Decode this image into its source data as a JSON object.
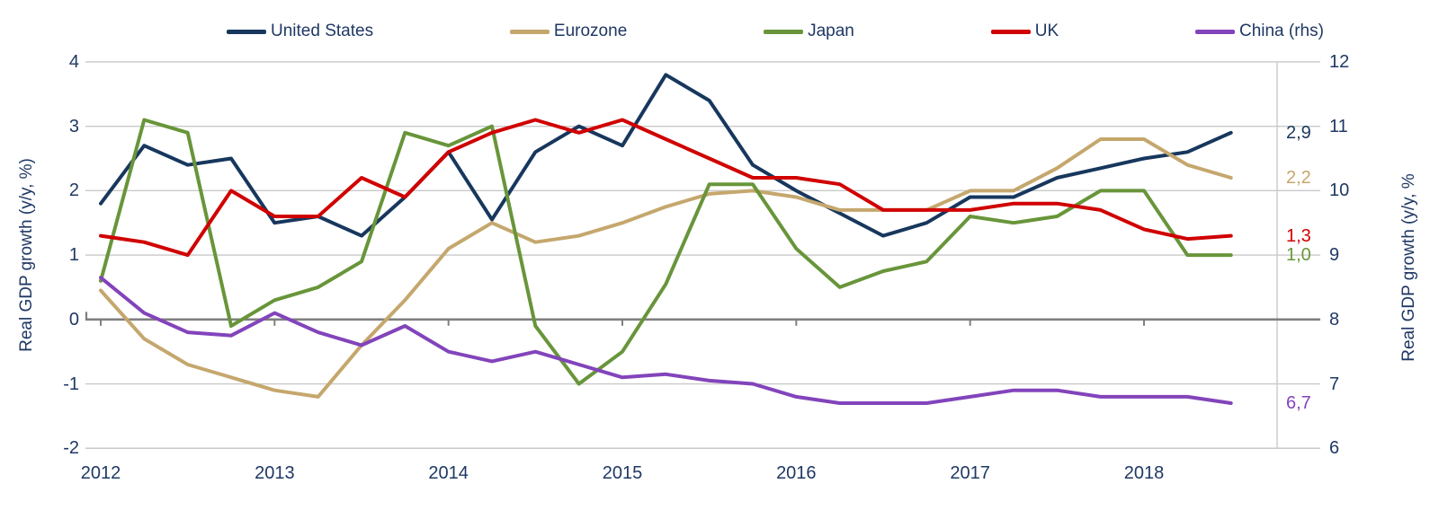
{
  "legend": [
    {
      "label": "United States",
      "color": "#17375d"
    },
    {
      "label": "Eurozone",
      "color": "#c5a76d"
    },
    {
      "label": "Japan",
      "color": "#68953a"
    },
    {
      "label": "UK",
      "color": "#d00000"
    },
    {
      "label": "China (rhs)",
      "color": "#8244bb"
    }
  ],
  "axes": {
    "left": {
      "title": "Real GDP growth (y/y, %)",
      "tick_labels": [
        "4",
        "3",
        "2",
        "1",
        "0",
        "-1",
        "-2"
      ],
      "tick_values": [
        4,
        3,
        2,
        1,
        0,
        -1,
        -2
      ]
    },
    "right": {
      "title": "Real GDP growth (y/y, %",
      "tick_labels": [
        "12",
        "11",
        "10",
        "9",
        "8",
        "7",
        "6"
      ],
      "tick_values": [
        12,
        11,
        10,
        9,
        8,
        7,
        6
      ]
    },
    "x": {
      "year_labels": [
        "2012",
        "2013",
        "2014",
        "2015",
        "2016",
        "2017",
        "2018"
      ]
    }
  },
  "chart_data": {
    "type": "line",
    "frequency": "quarterly",
    "x_start": "2012-Q1",
    "x_end": "2018-Q3",
    "grid": true,
    "legend_position": "top",
    "ylim_left": [
      -2,
      4
    ],
    "ylim_right": [
      6,
      12
    ],
    "series": [
      {
        "name": "United States",
        "color": "#17375d",
        "axis": "left",
        "end_label": "2,9",
        "values": [
          1.8,
          2.7,
          2.4,
          2.5,
          1.5,
          1.6,
          1.3,
          1.9,
          2.6,
          1.55,
          2.6,
          3.0,
          2.7,
          3.8,
          3.4,
          2.4,
          2.0,
          1.65,
          1.3,
          1.5,
          1.9,
          1.9,
          2.2,
          2.35,
          2.5,
          2.6,
          2.9
        ]
      },
      {
        "name": "Eurozone",
        "color": "#c5a76d",
        "axis": "left",
        "end_label": "2,2",
        "values": [
          0.45,
          -0.3,
          -0.7,
          -0.9,
          -1.1,
          -1.2,
          -0.4,
          0.3,
          1.1,
          1.5,
          1.2,
          1.3,
          1.5,
          1.75,
          1.95,
          2.0,
          1.9,
          1.7,
          1.7,
          1.7,
          2.0,
          2.0,
          2.35,
          2.8,
          2.8,
          2.4,
          2.2
        ]
      },
      {
        "name": "Japan",
        "color": "#68953a",
        "axis": "left",
        "end_label": "1,0",
        "values": [
          0.6,
          3.1,
          2.9,
          -0.1,
          0.3,
          0.5,
          0.9,
          2.9,
          2.7,
          3.0,
          -0.1,
          -1.0,
          -0.5,
          0.55,
          2.1,
          2.1,
          1.1,
          0.5,
          0.75,
          0.9,
          1.6,
          1.5,
          1.6,
          2.0,
          2.0,
          1.0,
          1.0
        ]
      },
      {
        "name": "UK",
        "color": "#d00000",
        "axis": "left",
        "end_label": "1,3",
        "values": [
          1.3,
          1.2,
          1.0,
          2.0,
          1.6,
          1.6,
          2.2,
          1.9,
          2.6,
          2.9,
          3.1,
          2.9,
          3.1,
          2.8,
          2.5,
          2.2,
          2.2,
          2.1,
          1.7,
          1.7,
          1.7,
          1.8,
          1.8,
          1.7,
          1.4,
          1.25,
          1.3
        ]
      },
      {
        "name": "China (rhs)",
        "color": "#8244bb",
        "axis": "right",
        "end_label": "6,7",
        "values": [
          8.65,
          8.1,
          7.8,
          7.75,
          8.1,
          7.8,
          7.6,
          7.9,
          7.5,
          7.35,
          7.5,
          7.3,
          7.1,
          7.15,
          7.05,
          7.0,
          6.8,
          6.7,
          6.7,
          6.7,
          6.8,
          6.9,
          6.9,
          6.8,
          6.8,
          6.8,
          6.7
        ]
      }
    ],
    "colors": {
      "grid": "#c9c9c9",
      "zero_line": "#7f7f7f",
      "text": "#1f3864"
    }
  }
}
